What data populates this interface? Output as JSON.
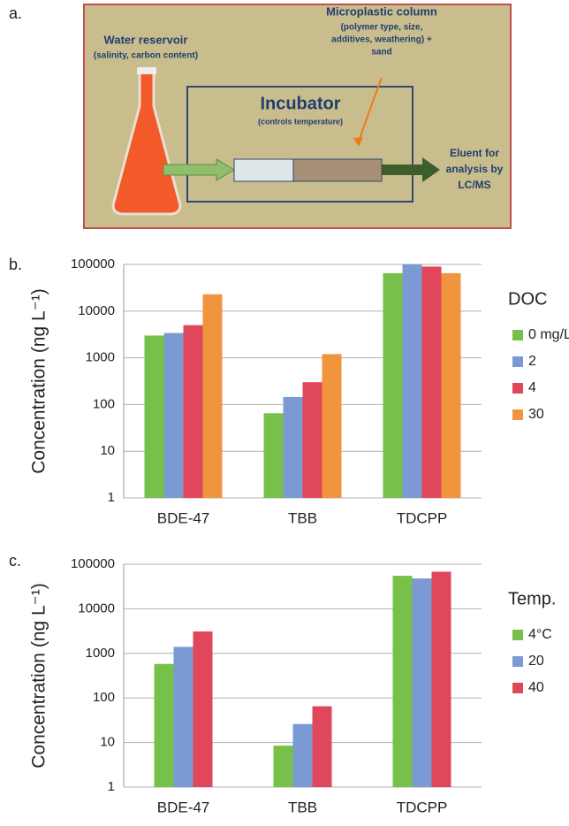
{
  "panel_labels": [
    "a.",
    "b.",
    "c."
  ],
  "diagram": {
    "reservoir": {
      "title": "Water reservoir",
      "note": "(salinity, carbon content)"
    },
    "column": {
      "title": "Microplastic column",
      "lines": [
        "(polymer type, size,",
        "additives, weathering) +",
        "sand"
      ]
    },
    "incubator": {
      "title": "Incubator",
      "note": "(controls temperature)"
    },
    "eluent": {
      "lines": [
        "Eluent for",
        "analysis by",
        "LC/MS"
      ]
    }
  },
  "chart_data": [
    {
      "type": "bar",
      "y_label": "Concentration (ng L⁻¹)",
      "categories": [
        "BDE-47",
        "TBB",
        "TDCPP"
      ],
      "log_y": true,
      "ylim": [
        1,
        100000
      ],
      "yticks": [
        1,
        10,
        100,
        1000,
        10000,
        100000
      ],
      "grid": true,
      "legend_title": "DOC",
      "series": [
        {
          "name": "0 mg/L",
          "color": "#77c14a",
          "values": [
            3000,
            65,
            65000
          ]
        },
        {
          "name": "2",
          "color": "#7b9ad4",
          "values": [
            3400,
            145,
            100000
          ]
        },
        {
          "name": "4",
          "color": "#e0475a",
          "values": [
            5000,
            300,
            90000
          ]
        },
        {
          "name": "30",
          "color": "#f0953d",
          "values": [
            23000,
            1200,
            65000
          ]
        }
      ]
    },
    {
      "type": "bar",
      "y_label": "Concentration (ng L⁻¹)",
      "categories": [
        "BDE-47",
        "TBB",
        "TDCPP"
      ],
      "log_y": true,
      "ylim": [
        1,
        100000
      ],
      "yticks": [
        1,
        10,
        100,
        1000,
        10000,
        100000
      ],
      "grid": true,
      "legend_title": "Temp.",
      "series": [
        {
          "name": "4°C",
          "color": "#77c14a",
          "values": [
            580,
            8.5,
            55000
          ]
        },
        {
          "name": "20",
          "color": "#7b9ad4",
          "values": [
            1400,
            26,
            48000
          ]
        },
        {
          "name": "40",
          "color": "#e0475a",
          "values": [
            3100,
            65,
            68000
          ]
        }
      ]
    }
  ]
}
